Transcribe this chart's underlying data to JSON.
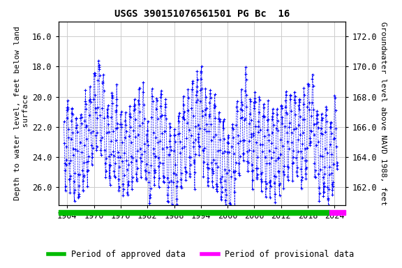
{
  "title": "USGS 390151076561501 PG Bc  16",
  "ylabel_left": "Depth to water level, feet below land\n surface",
  "ylabel_right": "Groundwater level above NAVD 1988, feet",
  "xlim": [
    1962.0,
    2026.5
  ],
  "ylim_left": [
    27.2,
    15.0
  ],
  "ylim_right": [
    160.8,
    173.0
  ],
  "yticks_left": [
    16.0,
    18.0,
    20.0,
    22.0,
    24.0,
    26.0
  ],
  "yticks_right": [
    172.0,
    170.0,
    168.0,
    166.0,
    164.0,
    162.0
  ],
  "xticks": [
    1964,
    1970,
    1976,
    1982,
    1988,
    1994,
    2000,
    2006,
    2012,
    2018,
    2024
  ],
  "line_color": "#0000ff",
  "marker": "+",
  "linestyle": "--",
  "approved_color": "#00bb00",
  "provisional_color": "#ff00ff",
  "background_color": "#ffffff",
  "grid_color": "#cccccc",
  "title_fontsize": 10,
  "axis_label_fontsize": 8,
  "tick_fontsize": 8.5,
  "legend_fontsize": 8.5,
  "approved_xstart": 1962.0,
  "approved_xend": 2022.8,
  "provisional_xstart": 2022.8,
  "provisional_xend": 2026.5
}
